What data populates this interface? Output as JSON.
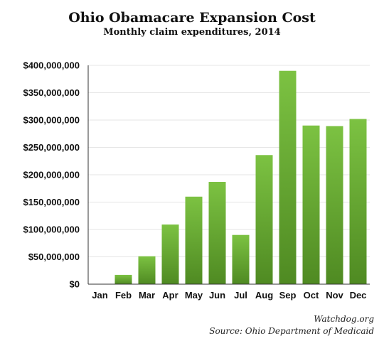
{
  "chart_data": {
    "type": "bar",
    "title": "Ohio Obamacare Expansion Cost",
    "subtitle": "Monthly claim expenditures, 2014",
    "categories": [
      "Jan",
      "Feb",
      "Mar",
      "Apr",
      "May",
      "Jun",
      "Jul",
      "Aug",
      "Sep",
      "Oct",
      "Nov",
      "Dec"
    ],
    "values": [
      0,
      17000000,
      51000000,
      109000000,
      160000000,
      187000000,
      90000000,
      236000000,
      390000000,
      290000000,
      289000000,
      302000000
    ],
    "y_ticks": [
      {
        "value": 0,
        "label": "$0"
      },
      {
        "value": 50000000,
        "label": "$50,000,000"
      },
      {
        "value": 100000000,
        "label": "$100,000,000"
      },
      {
        "value": 150000000,
        "label": "$150,000,000"
      },
      {
        "value": 200000000,
        "label": "$200,000,000"
      },
      {
        "value": 250000000,
        "label": "$250,000,000"
      },
      {
        "value": 300000000,
        "label": "$300,000,000"
      },
      {
        "value": 350000000,
        "label": "$350,000,000"
      },
      {
        "value": 400000000,
        "label": "$400,000,000"
      }
    ],
    "xlabel": "",
    "ylabel": "",
    "ylim": [
      0,
      400000000
    ],
    "grid": true,
    "legend": "none",
    "colors": {
      "bar_top": "#7cc242",
      "bar_bottom": "#4f8a22",
      "grid": "#e6e6e6",
      "axis": "#333333"
    }
  },
  "credits": {
    "site": "Watchdog.org",
    "source": "Source: Ohio Department of Medicaid"
  }
}
